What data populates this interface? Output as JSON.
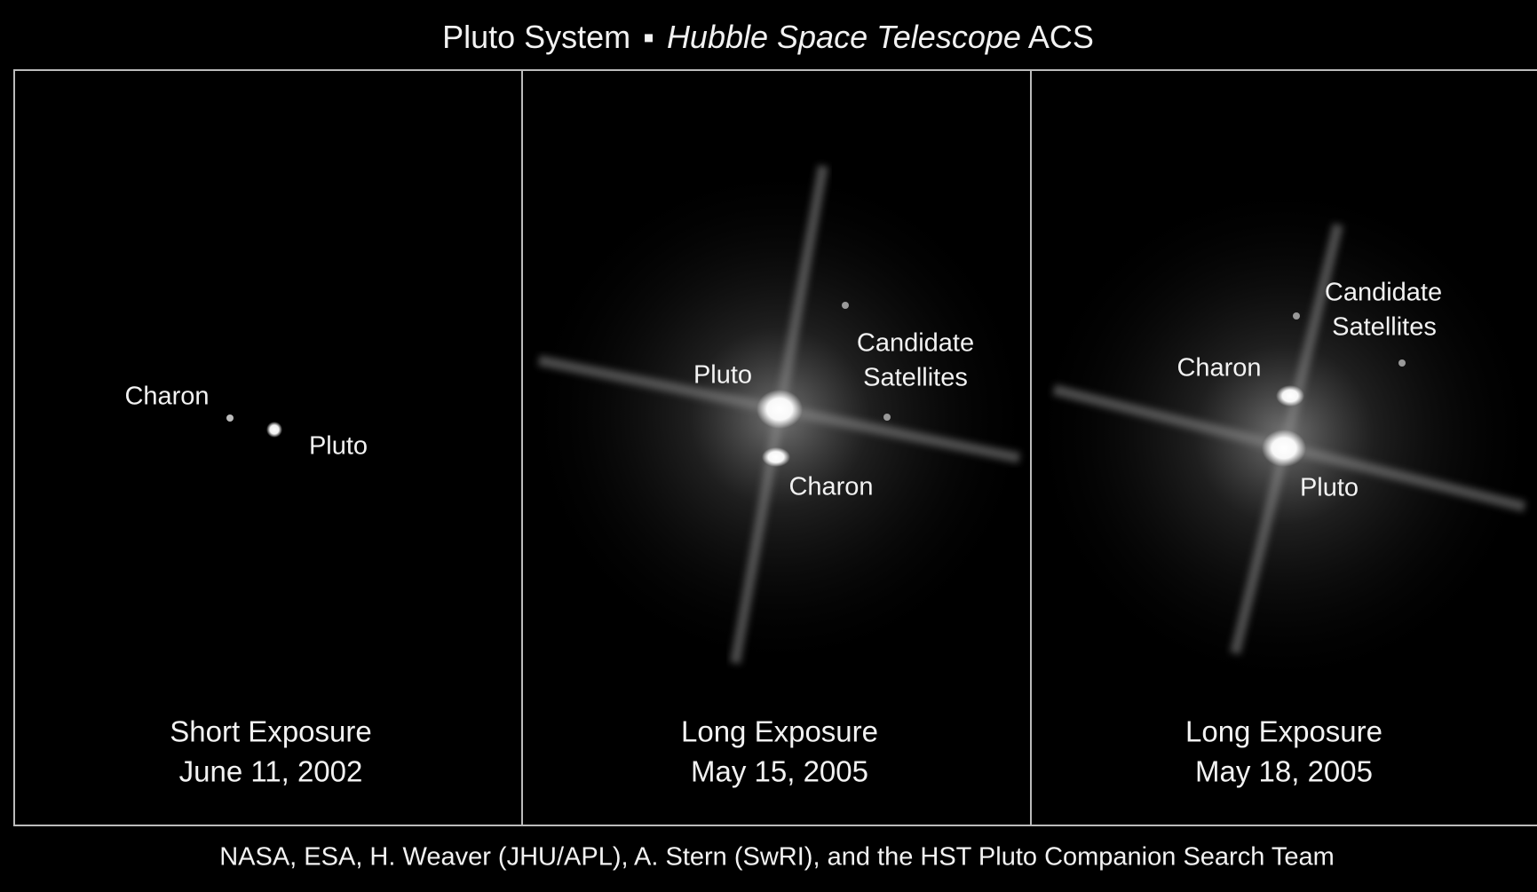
{
  "header": {
    "title_start": "Pluto System",
    "title_italic": "Hubble Space Telescope",
    "title_end": "ACS"
  },
  "panels": [
    {
      "labels": [
        "Charon",
        "Pluto"
      ],
      "caption": [
        "Short Exposure",
        "June 11, 2002"
      ]
    },
    {
      "labels": [
        "Pluto",
        "Candidate",
        "Satellites",
        "Charon"
      ],
      "caption": [
        "Long Exposure",
        "May 15, 2005"
      ]
    },
    {
      "labels": [
        "Candidate",
        "Satellites",
        "Charon",
        "Pluto"
      ],
      "caption": [
        "Long Exposure",
        "May 18, 2005"
      ]
    }
  ],
  "credit": "NASA, ESA, H. Weaver (JHU/APL), A. Stern (SwRI), and the HST Pluto Companion Search Team"
}
